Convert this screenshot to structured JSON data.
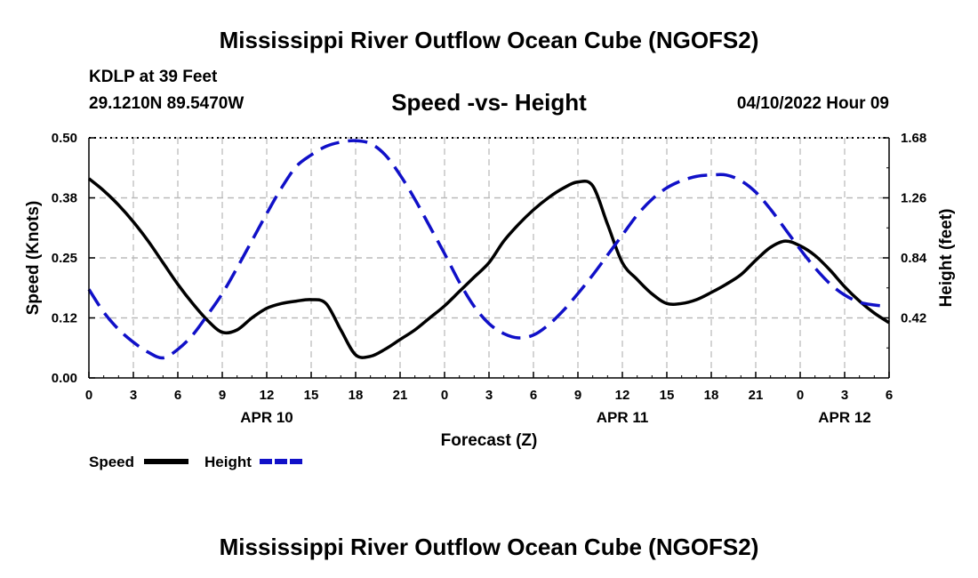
{
  "header": {
    "title": "Mississippi River Outflow Ocean Cube (NGOFS2)",
    "station": "KDLP at 39 Feet",
    "coords": "29.1210N  89.5470W",
    "subtitle": "Speed -vs- Height",
    "datetime": "04/10/2022 Hour 09"
  },
  "footer": {
    "title": "Mississippi River Outflow Ocean Cube (NGOFS2)"
  },
  "chart_data": {
    "type": "line",
    "xlabel": "Forecast (Z)",
    "ylabel_left": "Speed (Knots)",
    "ylabel_right": "Height (feet)",
    "x_range": [
      0,
      54
    ],
    "ylim_left": [
      0,
      0.5
    ],
    "ylim_right": [
      0,
      1.68
    ],
    "x_tick_values": [
      0,
      3,
      6,
      9,
      12,
      15,
      18,
      21,
      24,
      27,
      30,
      33,
      36,
      39,
      42,
      45,
      48,
      51,
      54
    ],
    "x_tick_labels": [
      "0",
      "3",
      "6",
      "9",
      "12",
      "15",
      "18",
      "21",
      "0",
      "3",
      "6",
      "9",
      "12",
      "15",
      "18",
      "21",
      "0",
      "3",
      "6"
    ],
    "date_labels": [
      {
        "label": "APR 10",
        "x": 12
      },
      {
        "label": "APR 11",
        "x": 36
      },
      {
        "label": "APR 12",
        "x": 51
      }
    ],
    "left_ticks": [
      {
        "value": 0,
        "label": "0.00"
      },
      {
        "value": 0.125,
        "label": "0.12"
      },
      {
        "value": 0.25,
        "label": "0.25"
      },
      {
        "value": 0.375,
        "label": "0.38"
      },
      {
        "value": 0.5,
        "label": "0.50"
      }
    ],
    "right_ticks": [
      {
        "value": 0.42,
        "label": "0.42"
      },
      {
        "value": 0.84,
        "label": "0.84"
      },
      {
        "value": 1.26,
        "label": "1.26"
      },
      {
        "value": 1.68,
        "label": "1.68"
      }
    ],
    "grid": true,
    "legend": [
      {
        "name": "Speed",
        "color": "#000000",
        "dash": "solid"
      },
      {
        "name": "Height",
        "color": "#1010c8",
        "dash": "dashed"
      }
    ],
    "series": [
      {
        "name": "Speed",
        "axis": "left",
        "color": "#000000",
        "x": [
          0,
          1,
          2,
          3,
          4,
          5,
          6,
          7,
          8,
          9,
          10,
          11,
          12,
          13,
          14,
          15,
          16,
          17,
          18,
          19,
          20,
          21,
          22,
          23,
          24,
          25,
          26,
          27,
          28,
          29,
          30,
          31,
          32,
          33,
          34,
          35,
          36,
          37,
          38,
          39,
          40,
          41,
          42,
          43,
          44,
          45,
          46,
          47,
          48,
          49,
          50,
          51,
          52,
          53,
          54
        ],
        "values": [
          0.415,
          0.39,
          0.36,
          0.325,
          0.285,
          0.24,
          0.195,
          0.155,
          0.12,
          0.095,
          0.1,
          0.125,
          0.145,
          0.155,
          0.16,
          0.163,
          0.155,
          0.1,
          0.048,
          0.045,
          0.06,
          0.08,
          0.1,
          0.125,
          0.15,
          0.18,
          0.21,
          0.24,
          0.285,
          0.32,
          0.35,
          0.375,
          0.395,
          0.408,
          0.4,
          0.32,
          0.24,
          0.205,
          0.175,
          0.155,
          0.155,
          0.163,
          0.178,
          0.195,
          0.215,
          0.245,
          0.272,
          0.285,
          0.275,
          0.255,
          0.225,
          0.19,
          0.16,
          0.135,
          0.115
        ]
      },
      {
        "name": "Height",
        "axis": "right",
        "color": "#1010c8",
        "x": [
          0,
          1,
          2,
          3,
          4,
          5,
          6,
          7,
          8,
          9,
          10,
          11,
          12,
          13,
          14,
          15,
          16,
          17,
          18,
          19,
          20,
          21,
          22,
          23,
          24,
          25,
          26,
          27,
          28,
          29,
          30,
          31,
          32,
          33,
          34,
          35,
          36,
          37,
          38,
          39,
          40,
          41,
          42,
          43,
          44,
          45,
          46,
          47,
          48,
          49,
          50,
          51,
          52,
          53,
          54
        ],
        "values": [
          0.62,
          0.46,
          0.34,
          0.25,
          0.18,
          0.14,
          0.2,
          0.3,
          0.44,
          0.59,
          0.77,
          0.96,
          1.15,
          1.33,
          1.48,
          1.56,
          1.62,
          1.65,
          1.66,
          1.64,
          1.56,
          1.42,
          1.25,
          1.06,
          0.87,
          0.67,
          0.5,
          0.38,
          0.31,
          0.28,
          0.3,
          0.37,
          0.47,
          0.59,
          0.72,
          0.86,
          1.0,
          1.14,
          1.25,
          1.33,
          1.38,
          1.41,
          1.42,
          1.42,
          1.38,
          1.3,
          1.18,
          1.04,
          0.9,
          0.77,
          0.66,
          0.58,
          0.53,
          0.51,
          0.5
        ]
      }
    ]
  }
}
